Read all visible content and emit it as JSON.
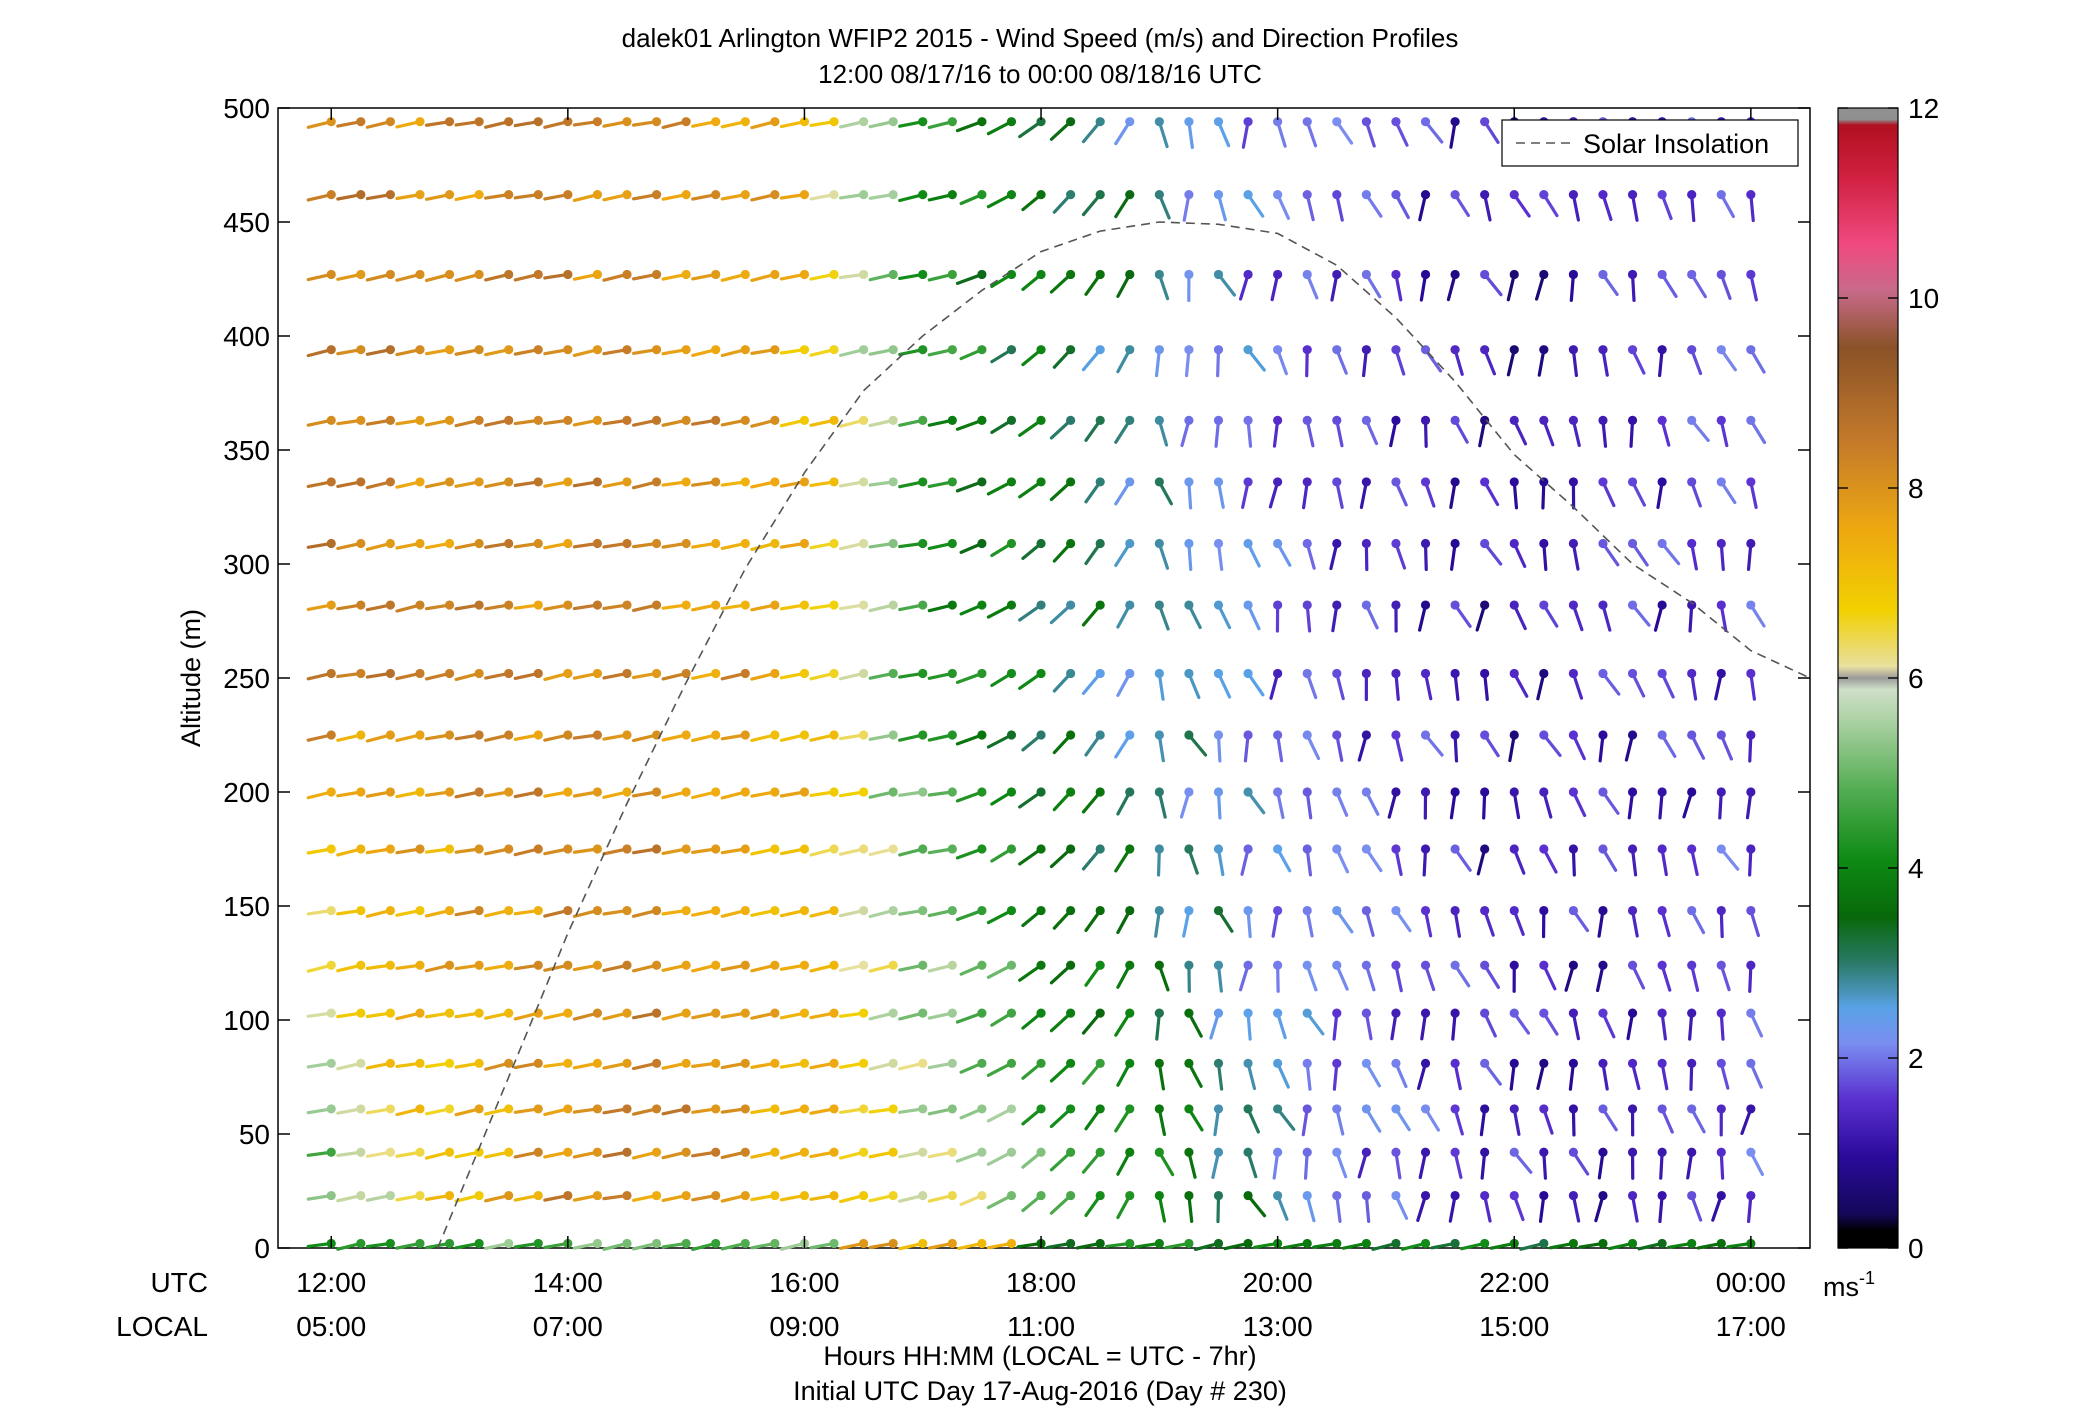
{
  "chart_data": {
    "type": "wind-profile (line + colored wind-direction sticks)",
    "title": "dalek01 Arlington WFIP2 2015 - Wind Speed (m/s) and Direction Profiles",
    "subtitle": "12:00 08/17/16 to 00:00 08/18/16  UTC",
    "ylabel": "Altitude (m)",
    "ylim": [
      0,
      500
    ],
    "y_ticks": [
      "0",
      "50",
      "100",
      "150",
      "200",
      "250",
      "300",
      "350",
      "400",
      "450",
      "500"
    ],
    "x_row_labels": {
      "utc": "UTC",
      "local": "LOCAL"
    },
    "x_ticks_utc": [
      "12:00",
      "14:00",
      "16:00",
      "18:00",
      "20:00",
      "22:00",
      "00:00"
    ],
    "x_ticks_local": [
      "05:00",
      "07:00",
      "09:00",
      "11:00",
      "13:00",
      "15:00",
      "17:00"
    ],
    "x_tick_hours": [
      0,
      2,
      4,
      6,
      8,
      10,
      12
    ],
    "xlim_hours": [
      -0.45,
      12.5
    ],
    "xlabel": "Hours HH:MM  (LOCAL = UTC - 7hr)",
    "xlabel2": "Initial UTC Day 17-Aug-2016 (Day # 230)",
    "legend": {
      "label": "Solar Insolation",
      "placement": "top-right"
    },
    "colorbar": {
      "ticks": [
        "0",
        "2",
        "4",
        "6",
        "8",
        "10",
        "12"
      ],
      "range": [
        0,
        12
      ],
      "units": "ms",
      "units_exp": "-1"
    },
    "solar_insolation": {
      "style": "dashed",
      "hours": [
        0.9,
        1.5,
        2.0,
        2.5,
        3.0,
        3.5,
        4.0,
        4.5,
        5.0,
        5.5,
        6.0,
        6.5,
        7.0,
        7.5,
        8.0,
        8.5,
        9.0,
        9.5,
        10.0,
        10.5,
        11.0,
        11.5,
        12.0,
        12.5
      ],
      "altitude_equiv": [
        0,
        75,
        138,
        195,
        248,
        298,
        340,
        376,
        400,
        420,
        437,
        446,
        450,
        449,
        445,
        431,
        408,
        380,
        348,
        325,
        300,
        283,
        262,
        250
      ]
    },
    "profile_levels_m": [
      2,
      23,
      42,
      61,
      81,
      103,
      124,
      148,
      175,
      200,
      225,
      252,
      282,
      309,
      336,
      363,
      394,
      427,
      462,
      494
    ],
    "speed_regimes_by_hour": {
      "hours": [
        0,
        0.5,
        1,
        1.5,
        2,
        2.5,
        3,
        3.5,
        4,
        4.5,
        5,
        5.5,
        6,
        6.5,
        7,
        7.5,
        8,
        8.5,
        9,
        9.5,
        10,
        10.5,
        11,
        11.5,
        12
      ],
      "mean_speed_upper_ms": [
        8.2,
        8.2,
        8.1,
        8.1,
        8.1,
        8.1,
        8.0,
        7.9,
        7.2,
        6.0,
        4.5,
        3.9,
        3.4,
        3.0,
        2.6,
        2.2,
        1.8,
        1.6,
        1.4,
        1.2,
        1.0,
        1.2,
        1.3,
        1.4,
        1.5
      ],
      "mean_speed_lower_ms": [
        4.5,
        6.0,
        6.8,
        7.5,
        8.0,
        8.1,
        8.0,
        7.8,
        7.4,
        7.0,
        6.5,
        6.0,
        5.0,
        4.5,
        4.0,
        3.4,
        2.5,
        2.0,
        1.8,
        1.5,
        1.3,
        1.2,
        1.3,
        1.5,
        1.7
      ]
    }
  }
}
